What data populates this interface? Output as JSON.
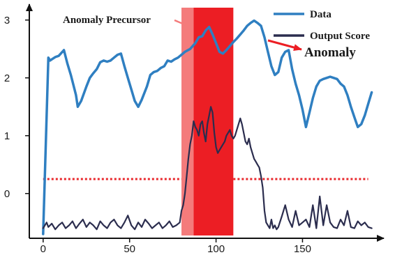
{
  "chart_data": {
    "type": "line",
    "title": "",
    "xlabel": "",
    "ylabel": "",
    "xlim": [
      -8,
      193
    ],
    "ylim": [
      -0.75,
      3.25
    ],
    "x_ticks": [
      0,
      50,
      100,
      150
    ],
    "y_ticks": [
      0,
      1,
      2,
      3
    ],
    "x_tick_labels": [
      "0",
      "50",
      "100",
      "150"
    ],
    "y_tick_labels": [
      "0",
      "1",
      "2",
      "3"
    ],
    "grid": false,
    "legend_position": "top-right",
    "threshold": {
      "value": 0.25,
      "gap": [
        80,
        110
      ],
      "color": "#e8262b"
    },
    "regions": [
      {
        "name": "Anomaly Precursor",
        "x": [
          80,
          87
        ],
        "color": "#f47b7b"
      },
      {
        "name": "Anomaly",
        "x": [
          87,
          110
        ],
        "color": "#ec1e24"
      }
    ],
    "annotations": [
      {
        "text": "Anomaly Precursor",
        "at": [
          83.5,
          3.0
        ],
        "arrow_color": "#f47b7b"
      },
      {
        "text": "Anomaly",
        "at": [
          107,
          2.65
        ],
        "arrow_color": "#ec1e24"
      }
    ],
    "series": [
      {
        "name": "Data",
        "color": "#2f7fc1",
        "x": [
          0,
          3,
          4,
          5,
          7,
          9,
          12,
          14,
          16,
          18,
          19,
          20,
          22,
          25,
          27,
          29,
          31,
          33,
          35,
          37,
          39,
          41,
          43,
          45,
          47,
          49,
          51,
          53,
          55,
          57,
          60,
          62,
          64,
          66,
          68,
          70,
          72,
          74,
          76,
          78,
          80,
          82,
          85,
          88,
          90,
          92,
          94,
          96,
          98,
          100,
          102,
          104,
          106,
          108,
          110,
          112,
          114,
          116,
          118,
          120,
          122,
          124,
          126,
          128,
          130,
          132,
          134,
          136,
          138,
          140,
          142,
          144,
          146,
          148,
          150,
          152,
          154,
          156,
          158,
          160,
          162,
          164,
          166,
          168,
          170,
          172,
          174,
          176,
          178,
          180,
          182,
          184,
          186,
          188,
          190
        ],
        "y": [
          -0.7,
          2.35,
          2.3,
          2.32,
          2.36,
          2.38,
          2.48,
          2.25,
          2.05,
          1.82,
          1.7,
          1.5,
          1.6,
          1.85,
          2.0,
          2.08,
          2.15,
          2.27,
          2.3,
          2.28,
          2.3,
          2.35,
          2.4,
          2.42,
          2.2,
          2.0,
          1.8,
          1.6,
          1.5,
          1.62,
          1.85,
          2.05,
          2.1,
          2.12,
          2.17,
          2.2,
          2.3,
          2.28,
          2.32,
          2.35,
          2.4,
          2.45,
          2.5,
          2.6,
          2.7,
          2.72,
          2.82,
          2.88,
          2.75,
          2.6,
          2.45,
          2.42,
          2.48,
          2.55,
          2.62,
          2.68,
          2.75,
          2.82,
          2.9,
          2.95,
          2.99,
          2.95,
          2.9,
          2.7,
          2.45,
          2.2,
          2.05,
          2.1,
          2.35,
          2.45,
          2.48,
          2.15,
          1.9,
          1.7,
          1.45,
          1.15,
          1.4,
          1.65,
          1.85,
          1.95,
          1.98,
          2.0,
          2.02,
          2.0,
          1.98,
          1.9,
          1.85,
          1.7,
          1.5,
          1.32,
          1.15,
          1.2,
          1.35,
          1.55,
          1.75
        ]
      },
      {
        "name": "Output Score",
        "color": "#2b2d4e",
        "x": [
          0,
          1,
          2,
          3,
          5,
          7,
          9,
          11,
          13,
          15,
          17,
          19,
          21,
          23,
          25,
          27,
          29,
          31,
          33,
          35,
          37,
          39,
          41,
          43,
          45,
          47,
          49,
          51,
          53,
          55,
          57,
          59,
          61,
          63,
          65,
          67,
          69,
          71,
          73,
          75,
          77,
          79,
          80,
          81,
          82,
          83,
          84,
          85,
          86,
          87,
          88,
          89,
          90,
          91,
          92,
          93,
          94,
          95,
          96,
          97,
          98,
          99,
          100,
          101,
          102,
          103,
          104,
          105,
          106,
          107,
          108,
          109,
          110,
          111,
          112,
          113,
          114,
          115,
          116,
          117,
          118,
          119,
          120,
          121,
          122,
          123,
          124,
          125,
          126,
          127,
          128,
          129,
          130,
          131,
          132,
          133,
          134,
          135,
          136,
          138,
          140,
          142,
          144,
          146,
          148,
          150,
          152,
          154,
          156,
          158,
          160,
          162,
          164,
          166,
          168,
          170,
          172,
          174,
          176,
          178,
          180,
          182,
          184,
          186,
          188,
          190
        ],
        "y": [
          -0.6,
          -0.55,
          -0.5,
          -0.58,
          -0.52,
          -0.62,
          -0.55,
          -0.5,
          -0.6,
          -0.55,
          -0.48,
          -0.6,
          -0.52,
          -0.45,
          -0.58,
          -0.5,
          -0.55,
          -0.62,
          -0.48,
          -0.55,
          -0.6,
          -0.5,
          -0.45,
          -0.55,
          -0.6,
          -0.5,
          -0.38,
          -0.55,
          -0.62,
          -0.5,
          -0.58,
          -0.45,
          -0.52,
          -0.6,
          -0.55,
          -0.5,
          -0.6,
          -0.55,
          -0.48,
          -0.58,
          -0.55,
          -0.5,
          -0.3,
          -0.2,
          0.0,
          0.3,
          0.6,
          0.85,
          1.0,
          1.25,
          1.15,
          1.1,
          1.0,
          1.2,
          1.25,
          1.05,
          0.9,
          1.2,
          1.35,
          1.5,
          1.4,
          1.05,
          0.8,
          0.7,
          0.75,
          0.8,
          0.85,
          0.9,
          1.0,
          1.05,
          1.1,
          1.0,
          0.95,
          1.0,
          1.1,
          1.2,
          1.3,
          1.2,
          1.05,
          0.9,
          0.85,
          0.95,
          0.8,
          0.7,
          0.6,
          0.55,
          0.5,
          0.45,
          0.3,
          0.1,
          -0.3,
          -0.5,
          -0.55,
          -0.6,
          -0.45,
          -0.6,
          -0.55,
          -0.62,
          -0.58,
          -0.4,
          -0.2,
          -0.45,
          -0.58,
          -0.3,
          -0.55,
          -0.5,
          -0.45,
          -0.58,
          -0.2,
          -0.6,
          -0.05,
          -0.55,
          -0.2,
          -0.5,
          -0.58,
          -0.6,
          -0.45,
          -0.55,
          -0.3,
          -0.58,
          -0.6,
          -0.48,
          -0.55,
          -0.5,
          -0.58,
          -0.6
        ]
      }
    ]
  }
}
